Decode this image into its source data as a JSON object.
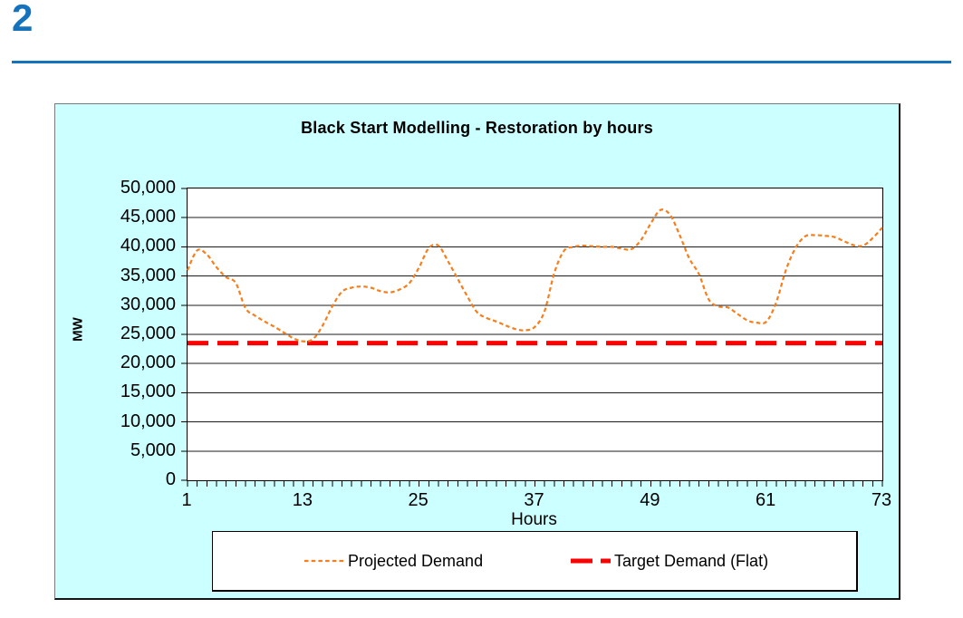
{
  "page": {
    "slide_number": "2",
    "accent_color": "#1573BD",
    "background_color": "#FFFFFF"
  },
  "chart": {
    "title": "Black Start Modelling - Restoration by hours",
    "xlabel": "Hours",
    "ylabel": "MW",
    "frame_background_color": "#CCFFFF",
    "plot_background_color": "#FFFFFF",
    "legend": [
      {
        "label": "Projected Demand",
        "color": "#F87E1B",
        "swatch": "short-dash-line"
      },
      {
        "label": "Target Demand (Flat)",
        "color": "#FF0000",
        "swatch": "long-dash-line"
      }
    ]
  },
  "chart_data": {
    "type": "line",
    "title": "Black Start Modelling - Restoration by hours",
    "xlabel": "Hours",
    "ylabel": "MW",
    "xlim": [
      1,
      73
    ],
    "ylim": [
      0,
      50000
    ],
    "grid_step": 5000,
    "grid": true,
    "minor_x_tick_every": 1,
    "x_tick_labels": [
      "1",
      "13",
      "25",
      "37",
      "49",
      "61",
      "73"
    ],
    "x_tick_values": [
      1,
      13,
      25,
      37,
      49,
      61,
      73
    ],
    "y_tick_values": [
      0,
      5000,
      10000,
      15000,
      20000,
      25000,
      30000,
      35000,
      40000,
      45000,
      50000
    ],
    "legend_position": "bottom",
    "x": [
      1,
      2,
      3,
      4,
      5,
      6,
      7,
      8,
      9,
      10,
      11,
      12,
      13,
      14,
      15,
      16,
      17,
      18,
      19,
      20,
      21,
      22,
      23,
      24,
      25,
      26,
      27,
      28,
      29,
      30,
      31,
      32,
      33,
      34,
      35,
      36,
      37,
      38,
      39,
      40,
      41,
      42,
      43,
      44,
      45,
      46,
      47,
      48,
      49,
      50,
      51,
      52,
      53,
      54,
      55,
      56,
      57,
      58,
      59,
      60,
      61,
      62,
      63,
      64,
      65,
      66,
      67,
      68,
      69,
      70,
      71,
      72,
      73
    ],
    "series": [
      {
        "name": "Projected Demand",
        "color": "#F87E1B",
        "line_style": "short-dash",
        "line_width": 2.2,
        "smooth": true,
        "values": [
          36000,
          39400,
          38700,
          36500,
          34800,
          33800,
          29500,
          28200,
          27200,
          26300,
          25300,
          24300,
          23800,
          24200,
          26500,
          29800,
          32300,
          33000,
          33200,
          33000,
          32400,
          32200,
          32700,
          33800,
          36500,
          39800,
          40200,
          37500,
          34500,
          31500,
          28800,
          27800,
          27200,
          26500,
          25900,
          25700,
          26300,
          29000,
          35500,
          39300,
          40000,
          40200,
          40100,
          40000,
          40000,
          39700,
          39600,
          41200,
          44000,
          46300,
          45500,
          42000,
          38000,
          35300,
          31000,
          29800,
          29600,
          28500,
          27400,
          27000,
          27200,
          30500,
          36000,
          39800,
          41800,
          42000,
          41900,
          41700,
          41000,
          40300,
          40200,
          41500,
          43300
        ]
      },
      {
        "name": "Target Demand (Flat)",
        "color": "#FF0000",
        "line_style": "long-dash",
        "line_width": 5,
        "flat_value": 23500
      }
    ]
  }
}
